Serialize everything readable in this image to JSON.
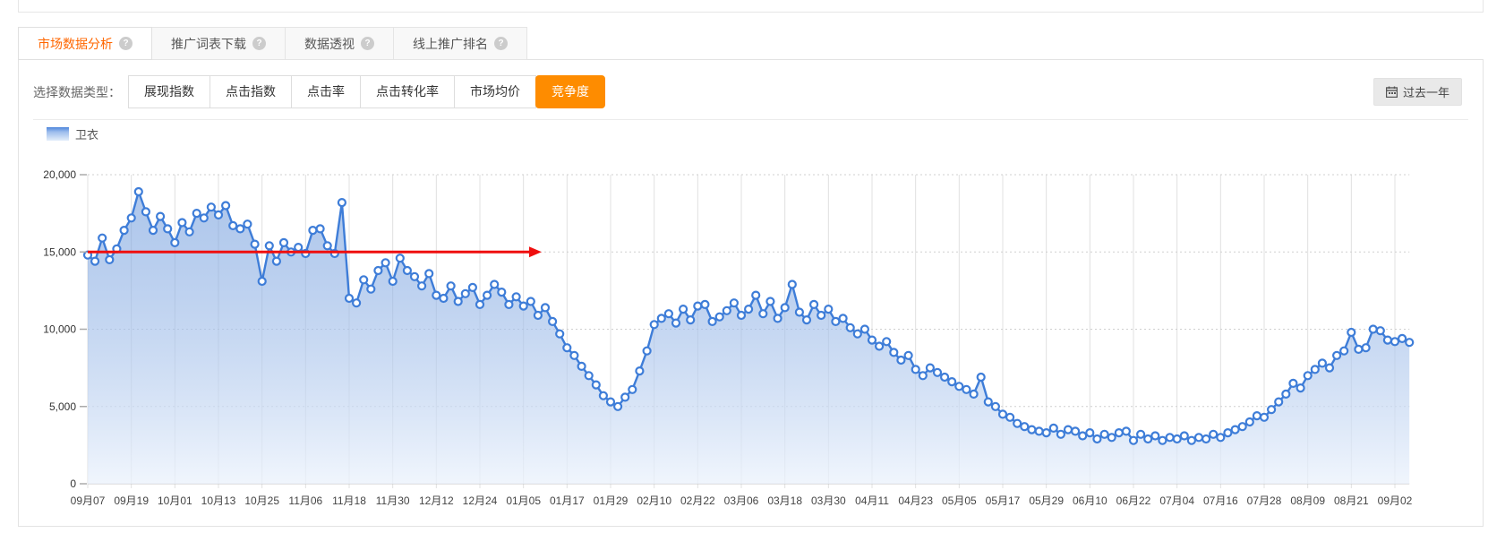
{
  "tabs": [
    {
      "label": "市场数据分析",
      "active": true
    },
    {
      "label": "推广词表下载",
      "active": false
    },
    {
      "label": "数据透视",
      "active": false
    },
    {
      "label": "线上推广排名",
      "active": false
    }
  ],
  "controls": {
    "label": "选择数据类型：",
    "options": [
      "展现指数",
      "点击指数",
      "点击率",
      "点击转化率",
      "市场均价",
      "竞争度"
    ],
    "selected": "竞争度",
    "period_label": "过去一年"
  },
  "legend": {
    "series_label": "卫衣"
  },
  "colors": {
    "accent_orange": "#fe8c00",
    "active_tab_text": "#ff6600",
    "line_blue": "#3e7dd8",
    "arrow_red": "#ef0f0f"
  },
  "chart_data": {
    "type": "line",
    "title": "",
    "series": [
      {
        "name": "卫衣",
        "color": "#3e7dd8",
        "marker": "hollow-circle",
        "area": true,
        "sample_interval_days": 2,
        "values": [
          14800,
          14400,
          15900,
          14500,
          15200,
          16400,
          17200,
          18900,
          17600,
          16400,
          17300,
          16500,
          15600,
          16900,
          16300,
          17500,
          17200,
          17900,
          17400,
          18000,
          16700,
          16500,
          16800,
          15500,
          13100,
          15400,
          14400,
          15600,
          15000,
          15300,
          14900,
          16400,
          16500,
          15400,
          14900,
          18200,
          12000,
          11700,
          13200,
          12600,
          13800,
          14300,
          13100,
          14600,
          13800,
          13400,
          12800,
          13600,
          12200,
          12000,
          12800,
          11800,
          12300,
          12700,
          11600,
          12200,
          12900,
          12400,
          11600,
          12100,
          11500,
          11800,
          10900,
          11400,
          10500,
          9700,
          8800,
          8300,
          7600,
          7000,
          6400,
          5700,
          5300,
          5000,
          5600,
          6100,
          7300,
          8600,
          10300,
          10700,
          11000,
          10400,
          11300,
          10600,
          11500,
          11600,
          10500,
          10800,
          11200,
          11700,
          10900,
          11300,
          12200,
          11000,
          11800,
          10700,
          11400,
          12900,
          11100,
          10600,
          11600,
          10900,
          11300,
          10500,
          10700,
          10100,
          9700,
          10000,
          9300,
          8900,
          9200,
          8500,
          8000,
          8300,
          7400,
          7000,
          7500,
          7200,
          6900,
          6600,
          6300,
          6100,
          5800,
          6900,
          5300,
          5000,
          4500,
          4300,
          3900,
          3700,
          3500,
          3400,
          3300,
          3600,
          3200,
          3500,
          3400,
          3100,
          3300,
          2900,
          3200,
          3000,
          3300,
          3400,
          2800,
          3200,
          2900,
          3100,
          2800,
          3000,
          2900,
          3100,
          2800,
          3000,
          2900,
          3200,
          3000,
          3300,
          3500,
          3700,
          4000,
          4400,
          4300,
          4800,
          5300,
          5800,
          6500,
          6200,
          7000,
          7400,
          7800,
          7500,
          8300,
          8600,
          9800,
          8700,
          8800,
          10000,
          9900,
          9300,
          9200,
          9400,
          9150
        ]
      }
    ],
    "x_tick_labels": [
      "09月07",
      "09月19",
      "10月01",
      "10月13",
      "10月25",
      "11月06",
      "11月18",
      "11月30",
      "12月12",
      "12月24",
      "01月05",
      "01月17",
      "01月29",
      "02月10",
      "02月22",
      "03月06",
      "03月18",
      "03月30",
      "04月11",
      "04月23",
      "05月05",
      "05月17",
      "05月29",
      "06月10",
      "06月22",
      "07月04",
      "07月16",
      "07月28",
      "08月09",
      "08月21",
      "09月02"
    ],
    "x_tick_interval_days": 12,
    "y_ticks": [
      0,
      5000,
      10000,
      15000,
      20000
    ],
    "y_tick_labels": [
      "0",
      "5,000",
      "10,000",
      "15,000",
      "20,000"
    ],
    "ylim": [
      0,
      20000
    ],
    "grid": {
      "vertical": "solid",
      "horizontal": "dotted"
    },
    "legend_position": "top-left",
    "annotations": [
      {
        "type": "horizontal-arrow",
        "value": 15000,
        "from_day": 0,
        "to_day": 125,
        "color": "#ef0f0f"
      }
    ]
  }
}
